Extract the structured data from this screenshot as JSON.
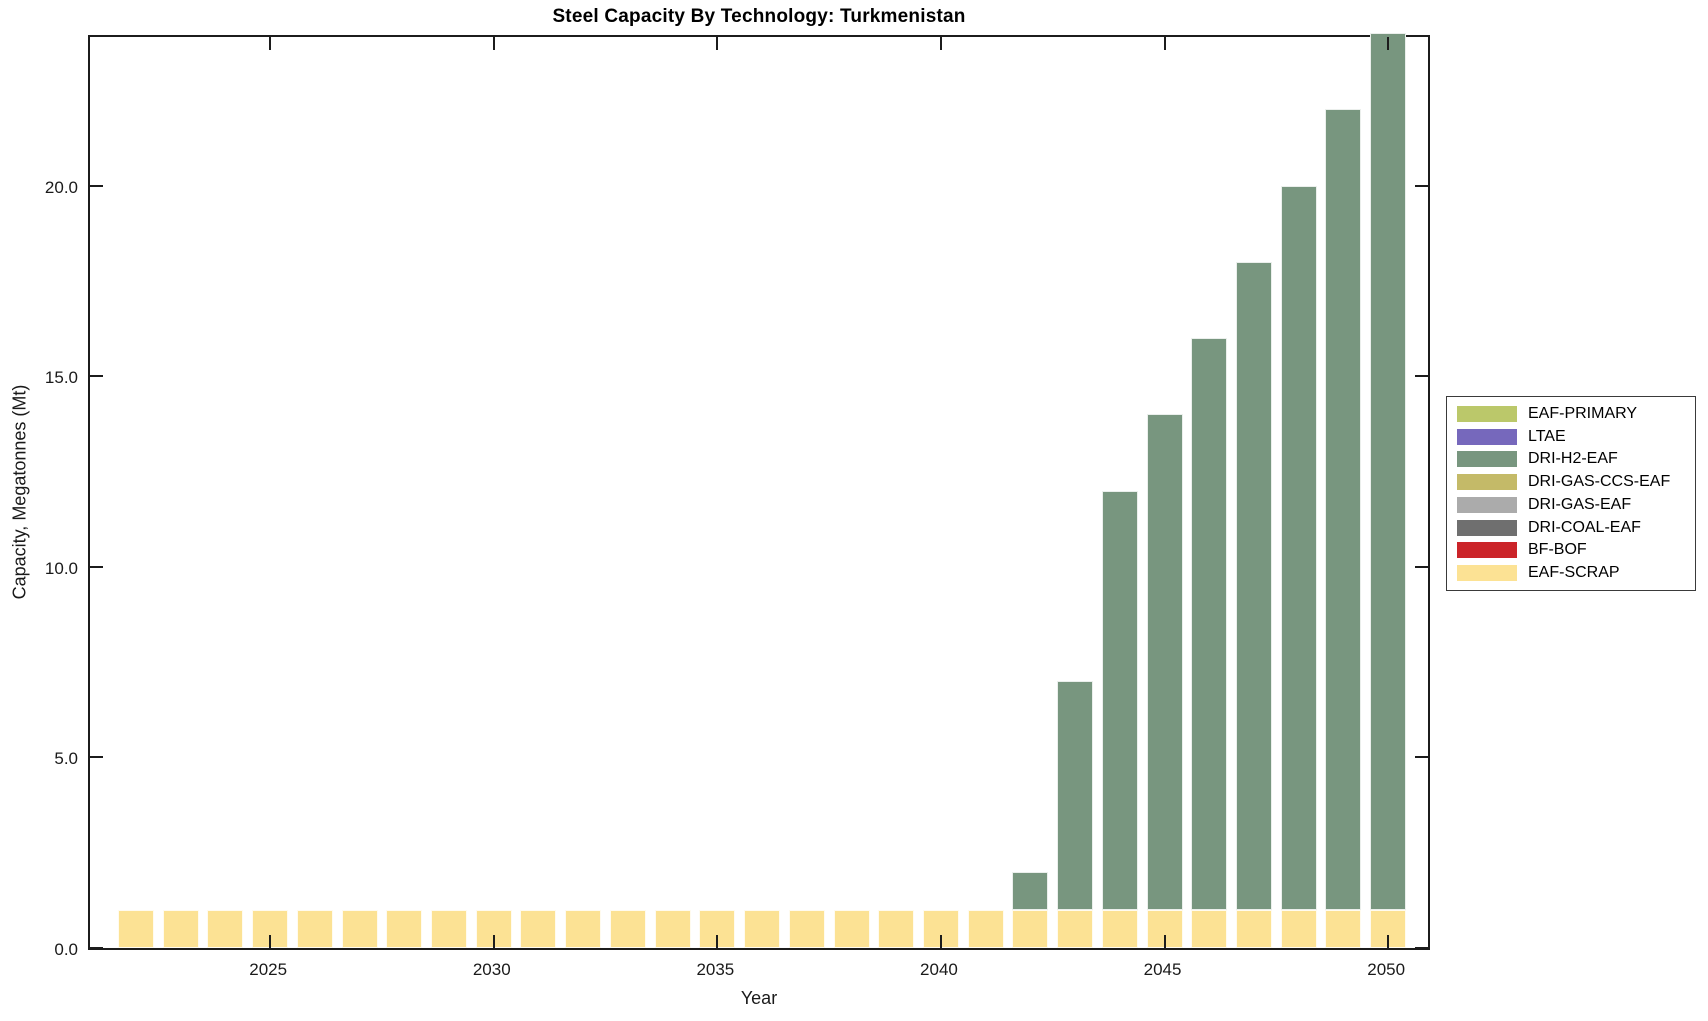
{
  "chart_data": {
    "type": "bar",
    "stacked": true,
    "title": "Steel Capacity By Technology: Turkmenistan",
    "xlabel": "Year",
    "ylabel": "Capacity, Megatonnes (Mt)",
    "categories": [
      2022,
      2023,
      2024,
      2025,
      2026,
      2027,
      2028,
      2029,
      2030,
      2031,
      2032,
      2033,
      2034,
      2035,
      2036,
      2037,
      2038,
      2039,
      2040,
      2041,
      2042,
      2043,
      2044,
      2045,
      2046,
      2047,
      2048,
      2049,
      2050
    ],
    "series": [
      {
        "name": "EAF-SCRAP",
        "color": "#FCE294",
        "values": [
          1,
          1,
          1,
          1,
          1,
          1,
          1,
          1,
          1,
          1,
          1,
          1,
          1,
          1,
          1,
          1,
          1,
          1,
          1,
          1,
          1,
          1,
          1,
          1,
          1,
          1,
          1,
          1,
          1
        ]
      },
      {
        "name": "DRI-H2-EAF",
        "color": "#78967F",
        "values": [
          0,
          0,
          0,
          0,
          0,
          0,
          0,
          0,
          0,
          0,
          0,
          0,
          0,
          0,
          0,
          0,
          0,
          0,
          0,
          0,
          1,
          6,
          11,
          13,
          15,
          17,
          19,
          21,
          23
        ]
      }
    ],
    "ylim": [
      0,
      24
    ],
    "ytick_values": [
      0,
      5,
      10,
      15,
      20
    ],
    "ytick_labels": [
      "0.0",
      "5.0",
      "10.0",
      "15.0",
      "20.0"
    ],
    "xtick_years": [
      2025,
      2030,
      2035,
      2040,
      2045,
      2050
    ],
    "grid": false,
    "legend_position": "outside-right",
    "legend": [
      {
        "label": "EAF-PRIMARY",
        "color": "#BBC86A"
      },
      {
        "label": "LTAE",
        "color": "#7668BC"
      },
      {
        "label": "DRI-H2-EAF",
        "color": "#78967F"
      },
      {
        "label": "DRI-GAS-CCS-EAF",
        "color": "#C4BA68"
      },
      {
        "label": "DRI-GAS-EAF",
        "color": "#ABABAB"
      },
      {
        "label": "DRI-COAL-EAF",
        "color": "#6F6F6F"
      },
      {
        "label": "BF-BOF",
        "color": "#CB2429"
      },
      {
        "label": "EAF-SCRAP",
        "color": "#FCE294"
      }
    ]
  }
}
